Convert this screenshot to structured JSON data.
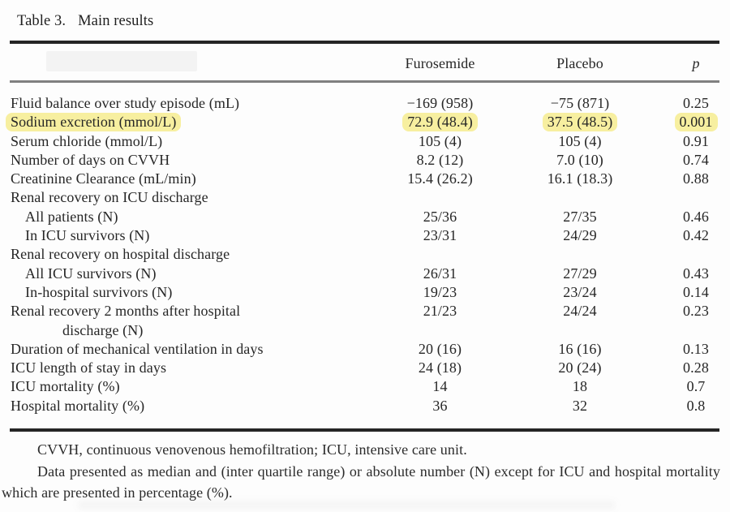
{
  "title": {
    "label": "Table 3.",
    "text": "Main results"
  },
  "columns": [
    "Furosemide",
    "Placebo",
    "p"
  ],
  "highlight_color": "#f7efa0",
  "rows": [
    {
      "label": "Fluid balance over study episode (mL)",
      "furosemide": "−169 (958)",
      "placebo": "−75 (871)",
      "p": "0.25",
      "indent": 0,
      "highlight": false
    },
    {
      "label": "Sodium excretion (mmol/L)",
      "furosemide": "72.9 (48.4)",
      "placebo": "37.5 (48.5)",
      "p": "0.001",
      "indent": 0,
      "highlight": true
    },
    {
      "label": "Serum chloride (mmol/L)",
      "furosemide": "105 (4)",
      "placebo": "105 (4)",
      "p": "0.91",
      "indent": 0,
      "highlight": false
    },
    {
      "label": "Number of days on CVVH",
      "furosemide": "8.2 (12)",
      "placebo": "7.0 (10)",
      "p": "0.74",
      "indent": 0,
      "highlight": false
    },
    {
      "label": "Creatinine Clearance (mL/min)",
      "furosemide": "15.4 (26.2)",
      "placebo": "16.1 (18.3)",
      "p": "0.88",
      "indent": 0,
      "highlight": false
    },
    {
      "label": "Renal recovery on ICU discharge",
      "furosemide": "",
      "placebo": "",
      "p": "",
      "indent": 0,
      "highlight": false
    },
    {
      "label": "All patients (N)",
      "furosemide": "25/36",
      "placebo": "27/35",
      "p": "0.46",
      "indent": 1,
      "highlight": false
    },
    {
      "label": "In ICU survivors (N)",
      "furosemide": "23/31",
      "placebo": "24/29",
      "p": "0.42",
      "indent": 1,
      "highlight": false
    },
    {
      "label": "Renal recovery on hospital discharge",
      "furosemide": "",
      "placebo": "",
      "p": "",
      "indent": 0,
      "highlight": false
    },
    {
      "label": "All ICU survivors (N)",
      "furosemide": "26/31",
      "placebo": "27/29",
      "p": "0.43",
      "indent": 1,
      "highlight": false
    },
    {
      "label": "In-hospital survivors (N)",
      "furosemide": "19/23",
      "placebo": "23/24",
      "p": "0.14",
      "indent": 1,
      "highlight": false
    },
    {
      "label": "Renal recovery 2 months after hospital",
      "furosemide": "21/23",
      "placebo": "24/24",
      "p": "0.23",
      "indent": 0,
      "highlight": false
    },
    {
      "label": "discharge (N)",
      "furosemide": "",
      "placebo": "",
      "p": "",
      "indent": 2,
      "highlight": false
    },
    {
      "label": "Duration of mechanical ventilation in days",
      "furosemide": "20 (16)",
      "placebo": "16 (16)",
      "p": "0.13",
      "indent": 0,
      "highlight": false
    },
    {
      "label": "ICU length of stay in days",
      "furosemide": "24 (18)",
      "placebo": "20 (24)",
      "p": "0.28",
      "indent": 0,
      "highlight": false
    },
    {
      "label": "ICU mortality (%)",
      "furosemide": "14",
      "placebo": "18",
      "p": "0.7",
      "indent": 0,
      "highlight": false
    },
    {
      "label": "Hospital mortality (%)",
      "furosemide": "36",
      "placebo": "32",
      "p": "0.8",
      "indent": 0,
      "highlight": false
    }
  ],
  "footnotes": [
    "CVVH, continuous venovenous hemofiltration; ICU, intensive care unit.",
    "Data presented as median and (inter quartile range) or absolute number (N) except for ICU and hospital mortality which are presented in percentage (%)."
  ]
}
